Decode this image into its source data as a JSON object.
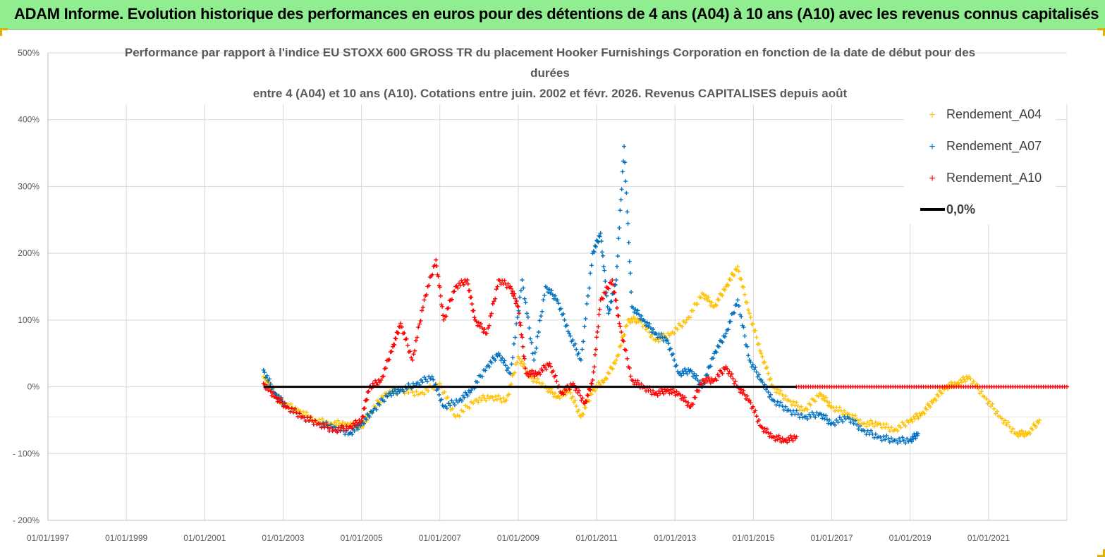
{
  "banner": {
    "title": "ADAM Informe. Evolution historique des performances en euros pour des détentions de 4 ans (A04) à 10 ans (A10) avec les revenus connus capitalisés"
  },
  "colors": {
    "banner_bg": "#90EE90",
    "a04": "#FFC000",
    "a07": "#0070C0",
    "a10": "#FF0000",
    "zero": "#000000",
    "grid": "#D9D9D9"
  },
  "chart_data": {
    "type": "scatter",
    "title_lines": [
      "Performance par rapport à l'indice EU STOXX 600 GROSS TR  du placement Hooker Furnishings Corporation en fonction de la date de début pour des",
      "durées",
      "entre 4 (A04) et 10 ans (A10). Cotations entre juin. 2002 et févr. 2026. Revenus CAPITALISES depuis août"
    ],
    "x_range": [
      1997.0,
      2023.0
    ],
    "x_ticks": [
      1997,
      1999,
      2001,
      2003,
      2005,
      2007,
      2009,
      2011,
      2013,
      2015,
      2017,
      2019,
      2021
    ],
    "x_tick_labels": [
      "01/01/1997",
      "01/01/1999",
      "01/01/2001",
      "01/01/2003",
      "01/01/2005",
      "01/01/2007",
      "01/01/2009",
      "01/01/2011",
      "01/01/2013",
      "01/01/2015",
      "01/01/2017",
      "01/01/2019",
      "01/01/2021"
    ],
    "y_range": [
      -200,
      500
    ],
    "y_ticks": [
      -200,
      -100,
      0,
      100,
      200,
      300,
      400,
      500
    ],
    "y_tick_labels": [
      "- 200%",
      "- 100%",
      "0%",
      "100%",
      "200%",
      "300%",
      "400%",
      "500%"
    ],
    "legend": [
      "Rendement_A04",
      "Rendement_A07",
      "Rendement_A10",
      "0,0%"
    ],
    "series": [
      {
        "name": "Rendement_A04",
        "x": [
          2002.5,
          2002.8,
          2003.0,
          2003.4,
          2003.8,
          2004.2,
          2004.6,
          2005.0,
          2005.2,
          2005.6,
          2006.0,
          2006.5,
          2007.0,
          2007.4,
          2007.9,
          2008.3,
          2008.7,
          2009.0,
          2009.3,
          2009.7,
          2010.0,
          2010.3,
          2010.6,
          2010.9,
          2011.2,
          2011.5,
          2011.8,
          2012.1,
          2012.5,
          2012.9,
          2013.3,
          2013.7,
          2014.0,
          2014.3,
          2014.6,
          2014.9,
          2015.2,
          2015.5,
          2015.9,
          2016.3,
          2016.7,
          2017.0,
          2017.4,
          2017.8,
          2018.2,
          2018.6,
          2019.0,
          2019.3,
          2019.6,
          2019.9,
          2020.2,
          2020.5,
          2020.9,
          2021.3,
          2021.7,
          2022.0,
          2022.3
        ],
        "y": [
          15,
          -10,
          -25,
          -35,
          -50,
          -55,
          -55,
          -60,
          -40,
          -10,
          -5,
          -10,
          5,
          -45,
          -20,
          -15,
          -20,
          45,
          15,
          0,
          -15,
          -5,
          -45,
          -5,
          10,
          40,
          100,
          100,
          70,
          80,
          100,
          140,
          120,
          150,
          180,
          110,
          50,
          0,
          -20,
          -35,
          -10,
          -30,
          -40,
          -55,
          -55,
          -65,
          -50,
          -40,
          -20,
          0,
          5,
          15,
          -15,
          -45,
          -70,
          -70,
          -50
        ]
      },
      {
        "name": "Rendement_A07",
        "x": [
          2002.5,
          2002.8,
          2003.1,
          2003.5,
          2003.9,
          2004.3,
          2004.7,
          2005.0,
          2005.3,
          2005.7,
          2006.0,
          2006.4,
          2006.8,
          2007.1,
          2007.5,
          2007.8,
          2008.2,
          2008.5,
          2008.8,
          2009.1,
          2009.4,
          2009.7,
          2010.0,
          2010.3,
          2010.6,
          2010.9,
          2011.1,
          2011.3,
          2011.5,
          2011.7,
          2011.9,
          2012.2,
          2012.5,
          2012.8,
          2013.1,
          2013.4,
          2013.7,
          2014.0,
          2014.3,
          2014.6,
          2014.9,
          2015.2,
          2015.5,
          2015.9,
          2016.3,
          2016.7,
          2017.0,
          2017.4,
          2017.8,
          2018.2,
          2018.6,
          2019.0,
          2019.2
        ],
        "y": [
          25,
          -10,
          -30,
          -45,
          -55,
          -60,
          -70,
          -55,
          -35,
          -10,
          -5,
          5,
          15,
          -30,
          -20,
          -5,
          30,
          50,
          20,
          160,
          40,
          150,
          130,
          80,
          40,
          200,
          230,
          110,
          160,
          360,
          120,
          100,
          80,
          70,
          20,
          25,
          0,
          50,
          80,
          130,
          40,
          10,
          -20,
          -35,
          -45,
          -40,
          -55,
          -45,
          -65,
          -75,
          -80,
          -80,
          -70
        ]
      },
      {
        "name": "Rendement_A10",
        "x": [
          2002.5,
          2002.8,
          2003.1,
          2003.5,
          2003.9,
          2004.3,
          2004.7,
          2005.0,
          2005.2,
          2005.5,
          2005.8,
          2006.0,
          2006.3,
          2006.6,
          2006.9,
          2007.1,
          2007.4,
          2007.7,
          2007.9,
          2008.2,
          2008.5,
          2008.8,
          2009.0,
          2009.2,
          2009.5,
          2009.8,
          2010.1,
          2010.4,
          2010.7,
          2010.9,
          2011.1,
          2011.4,
          2011.6,
          2011.9,
          2012.2,
          2012.5,
          2012.8,
          2013.1,
          2013.4,
          2013.7,
          2014.0,
          2014.3,
          2014.6,
          2014.9,
          2015.2,
          2015.5,
          2015.8,
          2016.1
        ],
        "y": [
          5,
          -15,
          -30,
          -45,
          -55,
          -65,
          -60,
          -50,
          0,
          10,
          60,
          95,
          40,
          130,
          190,
          100,
          150,
          160,
          100,
          80,
          160,
          150,
          120,
          20,
          20,
          35,
          -10,
          5,
          -25,
          10,
          130,
          160,
          90,
          10,
          0,
          -10,
          -5,
          -10,
          -30,
          10,
          10,
          30,
          0,
          -20,
          -60,
          -75,
          -80,
          -75
        ]
      },
      {
        "name": "0,0%",
        "x": [
          2002.5,
          2023.0
        ],
        "y": [
          0,
          0
        ]
      }
    ]
  }
}
